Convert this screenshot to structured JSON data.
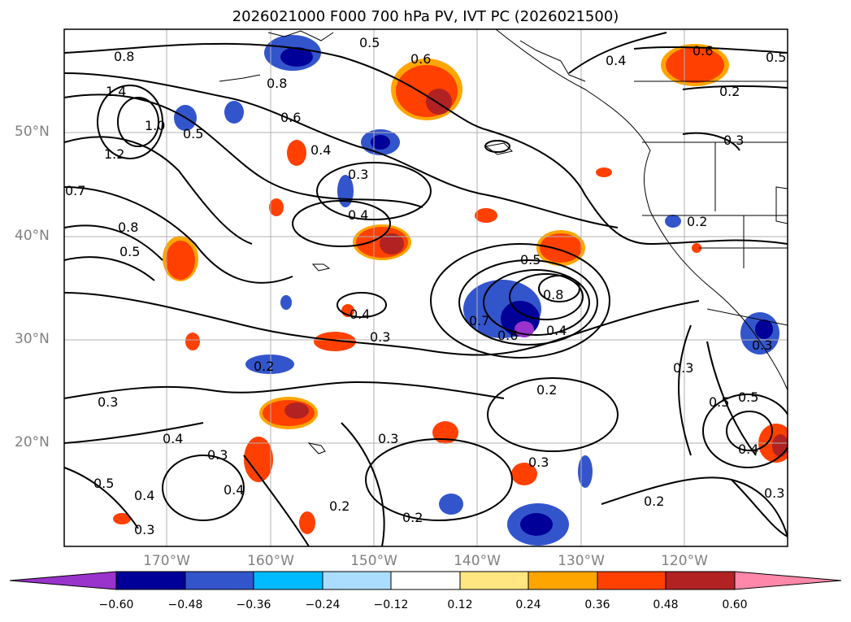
{
  "title": "2026021000 F000 700 hPa PV, IVT PC (2026021500)",
  "lat_labels": [
    "50°N",
    "40°N",
    "30°N",
    "20°N"
  ],
  "lon_labels": [
    "170°W",
    "160°W",
    "150°W",
    "140°W",
    "130°W",
    "120°W"
  ],
  "colorbar": {
    "ticks": [
      "−0.60",
      "−0.48",
      "−0.36",
      "−0.24",
      "−0.12",
      "0.12",
      "0.24",
      "0.36",
      "0.48",
      "0.60"
    ],
    "colors": [
      "#9933cc",
      "#000099",
      "#3355cc",
      "#00bbff",
      "#aaddff",
      "#ffffff",
      "#ffe680",
      "#ffa500",
      "#ff4000",
      "#b22222",
      "#ff88aa"
    ]
  },
  "contour_labels": [
    "0.8",
    "1.4",
    "1.0",
    "1.2",
    "0.7",
    "0.8",
    "0.5",
    "0.8",
    "0.6",
    "0.4",
    "0.3",
    "0.4",
    "0.6",
    "0.5",
    "0.6",
    "0.4",
    "0.5",
    "0.2",
    "0.3",
    "0.2",
    "0.5",
    "0.8",
    "0.7",
    "0.6",
    "0.4",
    "0.4",
    "0.3",
    "0.2",
    "0.3",
    "0.4",
    "0.3",
    "0.2",
    "0.3",
    "0.3",
    "0.5",
    "0.4",
    "0.4",
    "0.3",
    "0.2",
    "0.2",
    "0.3",
    "0.5",
    "0.5",
    "0.3",
    "0.4",
    "0.3",
    "0.2",
    "0.5"
  ]
}
